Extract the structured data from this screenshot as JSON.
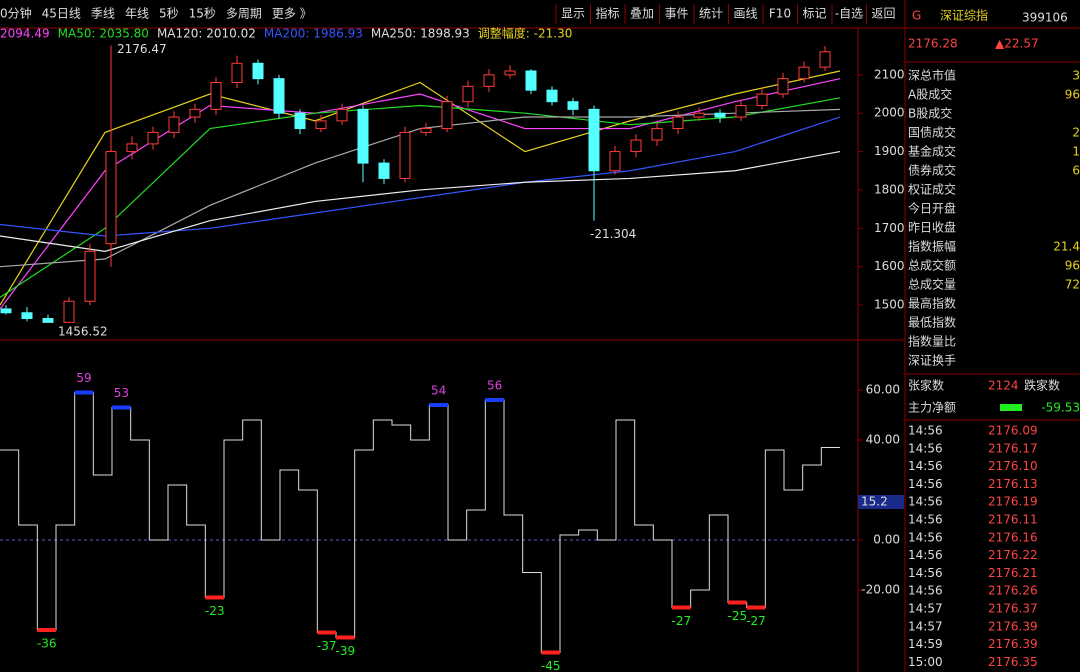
{
  "toolbar": {
    "left": [
      "0分钟",
      "45日线",
      "季线",
      "年线",
      "5秒",
      "15秒",
      "多周期",
      "更多 》"
    ],
    "right": [
      "显示",
      "指标",
      "叠加",
      "事件",
      "统计",
      "画线",
      "F10",
      "标记",
      "-自选",
      "返回"
    ]
  },
  "quote": {
    "flag": "G",
    "name": "深证综指",
    "code": "399106",
    "price": "2176.28",
    "change": "▲22.57",
    "rows": [
      [
        "深总市值",
        "3"
      ],
      [
        "A股成交",
        "96"
      ],
      [
        "B股成交",
        ""
      ],
      [
        "国债成交",
        "2"
      ],
      [
        "基金成交",
        "1"
      ],
      [
        "债券成交",
        "6"
      ],
      [
        "权证成交",
        ""
      ],
      [
        "今日开盘",
        ""
      ],
      [
        "昨日收盘",
        ""
      ],
      [
        "指数振幅",
        "21.4"
      ],
      [
        "总成交额",
        "96"
      ],
      [
        "总成交量",
        "72"
      ],
      [
        "最高指数",
        ""
      ],
      [
        "最低指数",
        ""
      ],
      [
        "指数量比",
        ""
      ],
      [
        "深证换手",
        ""
      ]
    ],
    "breadth": [
      "张家数",
      "2124",
      "跌家数"
    ],
    "flow": [
      "主力净额",
      "-59.53"
    ],
    "ticks": {
      "times": [
        "14:56",
        "14:56",
        "14:56",
        "14:56",
        "14:56",
        "14:56",
        "14:56",
        "14:56",
        "14:56",
        "14:56",
        "14:57",
        "14:57",
        "14:59",
        "15:00"
      ],
      "prices": [
        "2176.09",
        "2176.17",
        "2176.10",
        "2176.13",
        "2176.19",
        "2176.11",
        "2176.16",
        "2176.22",
        "2176.21",
        "2176.26",
        "2176.37",
        "2176.39",
        "2176.39",
        "2176.35"
      ]
    }
  },
  "price_chart": {
    "type": "candlestick",
    "legend": [
      {
        "text": "2094.49",
        "color": "#ff44ff"
      },
      {
        "text": "MA50: 2035.80",
        "color": "#22dd22"
      },
      {
        "text": "MA120: 2010.02",
        "color": "#dddddd"
      },
      {
        "text": "MA200: 1986.93",
        "color": "#3355ff"
      },
      {
        "text": "MA250: 1898.93",
        "color": "#dddddd"
      },
      {
        "text": "调整幅度: -21.30",
        "color": "#e6d21e"
      }
    ],
    "annotations": [
      "2176.47",
      "1456.52",
      "-21.304"
    ],
    "open": [
      1490,
      1480,
      1465,
      1455,
      1510,
      1660,
      1900,
      1920,
      1950,
      1990,
      2010,
      2080,
      2130,
      2090,
      2000,
      1960,
      1980,
      2010,
      1870,
      1830,
      1950,
      1960,
      2030,
      2070,
      2100,
      2110,
      2060,
      2030,
      2010,
      1850,
      1900,
      1930,
      1960,
      1990,
      2000,
      1990,
      2020,
      2050,
      2090,
      2120
    ],
    "high": [
      1500,
      1495,
      1475,
      1520,
      1660,
      2176.47,
      1940,
      1965,
      2005,
      2025,
      2095,
      2150,
      2140,
      2100,
      2010,
      1995,
      2025,
      2020,
      1880,
      1965,
      1975,
      2045,
      2085,
      2115,
      2125,
      2115,
      2070,
      2040,
      2020,
      1915,
      1945,
      1975,
      2005,
      2015,
      2010,
      2035,
      2065,
      2105,
      2135,
      2175
    ],
    "low": [
      1475,
      1458,
      1456.52,
      1462,
      1500,
      1600,
      1880,
      1905,
      1935,
      1975,
      1995,
      2065,
      2075,
      1985,
      1945,
      1950,
      1970,
      1820,
      1815,
      1820,
      1940,
      1950,
      2015,
      2055,
      2090,
      2050,
      2020,
      1995,
      1720,
      1840,
      1885,
      1915,
      1945,
      1980,
      1975,
      1980,
      2010,
      2040,
      2080,
      2110
    ],
    "close": [
      1480,
      1465,
      1455,
      1510,
      1640,
      1900,
      1920,
      1950,
      1990,
      2010,
      2080,
      2130,
      2090,
      2000,
      1960,
      1980,
      2010,
      1870,
      1830,
      1950,
      1960,
      2030,
      2070,
      2100,
      2110,
      2060,
      2030,
      2010,
      1850,
      1900,
      1930,
      1960,
      1990,
      2000,
      1990,
      2020,
      2050,
      2090,
      2120,
      2160
    ],
    "lines": [
      {
        "color": "#e6d21e",
        "values": [
          1500,
          1950,
          2050,
          1980,
          2080,
          1900,
          1980,
          2050,
          2110
        ]
      },
      {
        "color": "#ff44ff",
        "values": [
          1490,
          1850,
          2020,
          2000,
          2050,
          1960,
          1960,
          2030,
          2090
        ]
      },
      {
        "color": "#22dd22",
        "values": [
          1520,
          1700,
          1960,
          2000,
          2020,
          2000,
          1970,
          1990,
          2040
        ]
      },
      {
        "color": "#aaaaaa",
        "values": [
          1600,
          1620,
          1760,
          1870,
          1960,
          1990,
          1990,
          2000,
          2010
        ]
      },
      {
        "color": "#3355ff",
        "values": [
          1710,
          1680,
          1700,
          1740,
          1780,
          1820,
          1850,
          1900,
          1990
        ]
      },
      {
        "color": "#eeeeee",
        "values": [
          1680,
          1640,
          1720,
          1770,
          1800,
          1820,
          1830,
          1850,
          1900
        ]
      }
    ],
    "up_color": "#ff3c3c",
    "down_color": "#54ffff",
    "ylim": [
      1409,
      2222
    ],
    "yticks": [
      1500,
      1600,
      1700,
      1800,
      1900,
      2000,
      2100
    ]
  },
  "indicator_chart": {
    "type": "step-line",
    "color": "#dddddd",
    "values": [
      36,
      6,
      -36,
      6,
      59,
      26,
      53,
      40,
      0,
      22,
      6,
      -23,
      40,
      48,
      0,
      28,
      20,
      -37,
      -39,
      36,
      48,
      46,
      40,
      54,
      0,
      12,
      56,
      10,
      -13,
      -45,
      2,
      4,
      0,
      48,
      6,
      0,
      -27,
      -20,
      10,
      -25,
      -27,
      36,
      20,
      30,
      37
    ],
    "peaks": [
      59,
      53,
      54,
      56
    ],
    "troughs": [
      -36,
      -23,
      -37,
      -39,
      -45,
      -27,
      -25,
      -27
    ],
    "current": 15.2,
    "ylim": [
      -52.8,
      79.2
    ],
    "yticks": [
      {
        "value": 60,
        "label": "60.00"
      },
      {
        "value": 40,
        "label": "40.00"
      },
      {
        "value": 0,
        "label": "0.00"
      },
      {
        "value": -20,
        "label": "-20.00"
      }
    ]
  }
}
